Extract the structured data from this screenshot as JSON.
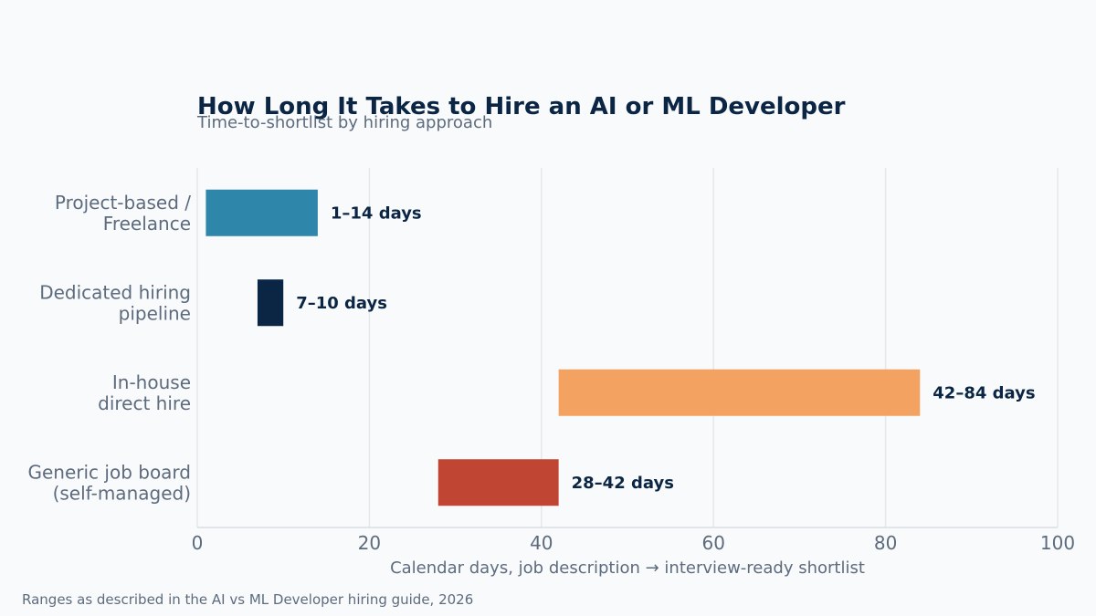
{
  "chart_data": {
    "type": "bar",
    "orientation": "horizontal-range",
    "title": "How Long It Takes to Hire an AI or ML Developer",
    "subtitle": "Time-to-shortlist by hiring approach",
    "xlabel": "Calendar days, job description → interview-ready shortlist",
    "ylabel": "",
    "xlim": [
      0,
      100
    ],
    "xticks": [
      0,
      20,
      40,
      60,
      80,
      100
    ],
    "grid": true,
    "categories": [
      "Project-based / Freelance",
      "Dedicated hiring pipeline",
      "In-house direct hire",
      "Generic job board (self-managed)"
    ],
    "category_lines": [
      [
        "Project-based /",
        "Freelance"
      ],
      [
        "Dedicated hiring",
        "pipeline"
      ],
      [
        "In-house",
        "direct hire"
      ],
      [
        "Generic job board",
        "(self-managed)"
      ]
    ],
    "ranges": [
      {
        "start": 1,
        "end": 14,
        "label": "1–14 days",
        "color": "#2e86ab"
      },
      {
        "start": 7,
        "end": 10,
        "label": "7–10 days",
        "color": "#0b2545"
      },
      {
        "start": 42,
        "end": 84,
        "label": "42–84 days",
        "color": "#f4a261"
      },
      {
        "start": 28,
        "end": 42,
        "label": "28–42 days",
        "color": "#c04532"
      }
    ],
    "footnote": "Ranges as described in the AI vs ML Developer hiring guide, 2026"
  }
}
